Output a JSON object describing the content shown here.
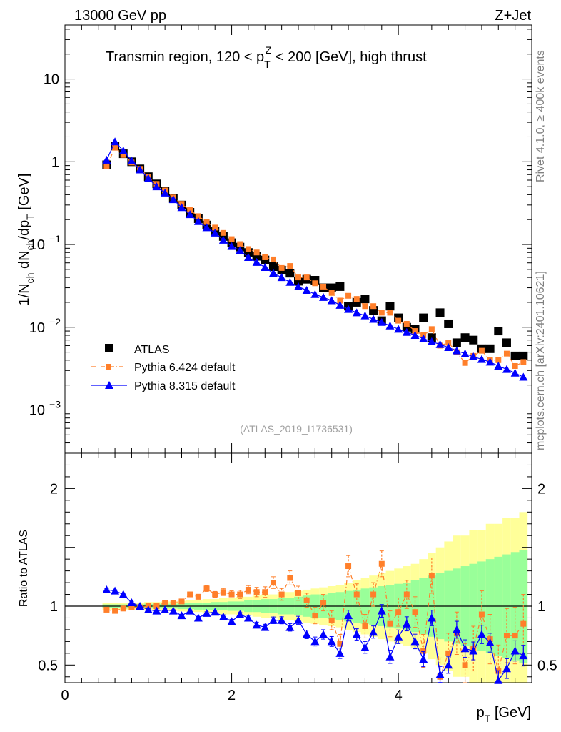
{
  "header": {
    "left": "13000 GeV pp",
    "right": "Z+Jet"
  },
  "side": {
    "rivet": "Rivet 4.1.0, ≥ 400k events",
    "mcplots": "mcplots.cern.ch [arXiv:2401.10621]"
  },
  "chart_data": [
    {
      "type": "scatter",
      "panel": "main",
      "title": {
        "pre": "Transmin region, 120 < p",
        "sub": "T",
        "sup": "Z",
        "post": " < 200 [GeV], high thrust"
      },
      "ylabel": {
        "a": "1/N",
        "a_sub": "ch",
        "b": " dN",
        "b_sub": "ch",
        "c": "/dp",
        "c_sub": "T",
        "d": " [GeV]"
      },
      "yscale": "log",
      "ylim": [
        0.0003,
        45
      ],
      "xlim": [
        0,
        5.6
      ],
      "yticks": [
        {
          "value": 0.001,
          "base": "10",
          "exp": "−3"
        },
        {
          "value": 0.01,
          "base": "10",
          "exp": "−2"
        },
        {
          "value": 0.1,
          "base": "10",
          "exp": "−1"
        },
        {
          "value": 1,
          "label": "1"
        },
        {
          "value": 10,
          "label": "10"
        }
      ],
      "analysis_tag": "(ATLAS_2019_I1736531)",
      "legend": {
        "position": "lower-left",
        "entries": [
          "ATLAS",
          "Pythia 6.424 default",
          "Pythia 8.315 default"
        ]
      },
      "x": [
        0.5,
        0.6,
        0.7,
        0.8,
        0.9,
        1.0,
        1.1,
        1.2,
        1.3,
        1.4,
        1.5,
        1.6,
        1.7,
        1.8,
        1.9,
        2.0,
        2.1,
        2.2,
        2.3,
        2.4,
        2.5,
        2.6,
        2.7,
        2.8,
        2.9,
        3.0,
        3.1,
        3.2,
        3.3,
        3.4,
        3.5,
        3.6,
        3.7,
        3.8,
        3.9,
        4.0,
        4.1,
        4.2,
        4.3,
        4.4,
        4.5,
        4.6,
        4.7,
        4.8,
        4.9,
        5.0,
        5.1,
        5.2,
        5.3,
        5.4,
        5.5
      ],
      "series": [
        {
          "name": "ATLAS",
          "color": "#000000",
          "marker": "square",
          "values": [
            0.92,
            1.55,
            1.25,
            1.0,
            0.82,
            0.66,
            0.54,
            0.44,
            0.36,
            0.3,
            0.245,
            0.205,
            0.172,
            0.145,
            0.125,
            0.105,
            0.093,
            0.08,
            0.072,
            0.065,
            0.054,
            0.049,
            0.045,
            0.036,
            0.038,
            0.037,
            0.03,
            0.03,
            0.031,
            0.018,
            0.02,
            0.022,
            0.016,
            0.012,
            0.018,
            0.013,
            0.01,
            0.0095,
            0.013,
            0.0075,
            0.015,
            0.011,
            0.0065,
            0.0075,
            0.007,
            0.0055,
            0.0055,
            0.009,
            0.0065,
            0.0045,
            0.0045
          ]
        },
        {
          "name": "Pythia 6.424 default",
          "color": "#ff7f2a",
          "marker": "small-square",
          "line": "dash-dot",
          "values": [
            0.88,
            1.48,
            1.21,
            0.98,
            0.82,
            0.66,
            0.54,
            0.45,
            0.37,
            0.31,
            0.26,
            0.22,
            0.187,
            0.16,
            0.138,
            0.116,
            0.101,
            0.088,
            0.08,
            0.07,
            0.066,
            0.052,
            0.055,
            0.04,
            0.04,
            0.034,
            0.031,
            0.026,
            0.021,
            0.024,
            0.022,
            0.018,
            0.018,
            0.015,
            0.015,
            0.012,
            0.011,
            0.009,
            0.008,
            0.0095,
            0.006,
            0.0065,
            0.005,
            0.0037,
            0.0045,
            0.0052,
            0.004,
            0.004,
            0.0048,
            0.0034,
            0.0038
          ]
        },
        {
          "name": "Pythia 8.315 default",
          "color": "#0000ff",
          "marker": "triangle",
          "line": "solid",
          "values": [
            1.05,
            1.75,
            1.36,
            1.03,
            0.8,
            0.63,
            0.5,
            0.42,
            0.35,
            0.28,
            0.23,
            0.19,
            0.16,
            0.138,
            0.113,
            0.095,
            0.085,
            0.07,
            0.061,
            0.053,
            0.045,
            0.04,
            0.035,
            0.031,
            0.028,
            0.025,
            0.023,
            0.021,
            0.0185,
            0.0165,
            0.015,
            0.0138,
            0.0125,
            0.0115,
            0.0104,
            0.0095,
            0.0087,
            0.008,
            0.0073,
            0.0067,
            0.0062,
            0.0057,
            0.0052,
            0.0048,
            0.0044,
            0.0041,
            0.0038,
            0.0034,
            0.0031,
            0.0028,
            0.0025
          ]
        }
      ]
    },
    {
      "type": "scatter",
      "panel": "ratio",
      "ylabel": "Ratio to ATLAS",
      "xlabel": {
        "main": "p",
        "sub": "T",
        "unit": " [GeV]"
      },
      "ylim": [
        0.35,
        2.3
      ],
      "xlim": [
        0,
        5.6
      ],
      "xticks": [
        {
          "value": 0,
          "label": "0"
        },
        {
          "value": 2,
          "label": "2"
        },
        {
          "value": 4,
          "label": "4"
        }
      ],
      "yticks": [
        {
          "value": 0.5,
          "label": "0.5"
        },
        {
          "value": 1,
          "label": "1"
        },
        {
          "value": 2,
          "label": "2"
        }
      ],
      "reference_line": 1,
      "bands": [
        {
          "name": "ATLAS total uncertainty",
          "color": "#ffff99",
          "half_widths": [
            0.03,
            0.03,
            0.03,
            0.03,
            0.03,
            0.035,
            0.035,
            0.04,
            0.04,
            0.045,
            0.05,
            0.05,
            0.06,
            0.06,
            0.07,
            0.07,
            0.08,
            0.08,
            0.09,
            0.1,
            0.1,
            0.12,
            0.12,
            0.13,
            0.14,
            0.15,
            0.16,
            0.17,
            0.18,
            0.2,
            0.22,
            0.24,
            0.26,
            0.28,
            0.3,
            0.32,
            0.34,
            0.36,
            0.4,
            0.45,
            0.5,
            0.55,
            0.6,
            0.6,
            0.65,
            0.65,
            0.7,
            0.7,
            0.75,
            0.75,
            0.8
          ]
        },
        {
          "name": "ATLAS statistical uncertainty",
          "color": "#99ff99",
          "half_widths": [
            0.015,
            0.015,
            0.015,
            0.015,
            0.015,
            0.02,
            0.02,
            0.02,
            0.02,
            0.025,
            0.025,
            0.03,
            0.03,
            0.035,
            0.035,
            0.04,
            0.04,
            0.05,
            0.05,
            0.06,
            0.06,
            0.07,
            0.07,
            0.08,
            0.09,
            0.1,
            0.1,
            0.11,
            0.12,
            0.13,
            0.14,
            0.15,
            0.16,
            0.17,
            0.18,
            0.19,
            0.2,
            0.22,
            0.24,
            0.26,
            0.28,
            0.3,
            0.32,
            0.34,
            0.36,
            0.38,
            0.4,
            0.42,
            0.44,
            0.46,
            0.48
          ]
        }
      ],
      "x": [
        0.5,
        0.6,
        0.7,
        0.8,
        0.9,
        1.0,
        1.1,
        1.2,
        1.3,
        1.4,
        1.5,
        1.6,
        1.7,
        1.8,
        1.9,
        2.0,
        2.1,
        2.2,
        2.3,
        2.4,
        2.5,
        2.6,
        2.7,
        2.8,
        2.9,
        3.0,
        3.1,
        3.2,
        3.3,
        3.4,
        3.5,
        3.6,
        3.7,
        3.8,
        3.9,
        4.0,
        4.1,
        4.2,
        4.3,
        4.4,
        4.5,
        4.6,
        4.7,
        4.8,
        4.9,
        5.0,
        5.1,
        5.2,
        5.3,
        5.4,
        5.5
      ],
      "series": [
        {
          "name": "Pythia 6.424 default",
          "color": "#ff7f2a",
          "values": [
            0.97,
            0.96,
            0.98,
            0.99,
            0.99,
            1.0,
            1.0,
            1.03,
            1.03,
            1.04,
            1.1,
            1.08,
            1.15,
            1.1,
            1.12,
            1.1,
            1.1,
            1.14,
            1.12,
            1.12,
            1.2,
            1.1,
            1.24,
            1.11,
            1.05,
            0.92,
            1.03,
            0.88,
            0.68,
            1.34,
            1.1,
            0.83,
            1.1,
            1.36,
            0.85,
            0.95,
            1.1,
            0.95,
            0.62,
            1.26,
            0.4,
            0.6,
            0.77,
            0.5,
            0.64,
            0.93,
            0.72,
            0.45,
            0.75,
            0.75,
            0.85
          ],
          "errors": [
            0.01,
            0.01,
            0.01,
            0.01,
            0.01,
            0.01,
            0.01,
            0.015,
            0.015,
            0.015,
            0.02,
            0.02,
            0.025,
            0.025,
            0.03,
            0.03,
            0.035,
            0.035,
            0.04,
            0.045,
            0.05,
            0.05,
            0.06,
            0.06,
            0.06,
            0.07,
            0.07,
            0.08,
            0.08,
            0.09,
            0.09,
            0.1,
            0.1,
            0.11,
            0.11,
            0.12,
            0.12,
            0.13,
            0.14,
            0.15,
            0.16,
            0.17,
            0.18,
            0.18,
            0.19,
            0.2,
            0.21,
            0.22,
            0.23,
            0.24,
            0.25
          ]
        },
        {
          "name": "Pythia 8.315 default",
          "color": "#0000ff",
          "values": [
            1.14,
            1.13,
            1.1,
            1.03,
            1.0,
            0.97,
            0.96,
            0.97,
            0.96,
            0.92,
            0.96,
            0.9,
            0.94,
            0.95,
            0.91,
            0.87,
            0.93,
            0.9,
            0.84,
            0.82,
            0.88,
            0.88,
            0.82,
            0.88,
            0.76,
            0.7,
            0.76,
            0.7,
            0.6,
            0.92,
            0.76,
            0.65,
            0.78,
            0.96,
            0.57,
            0.74,
            0.85,
            0.7,
            0.55,
            0.9,
            0.42,
            0.5,
            0.8,
            0.64,
            0.62,
            0.76,
            0.69,
            0.37,
            0.47,
            0.62,
            0.58
          ],
          "errors": [
            0.01,
            0.01,
            0.01,
            0.01,
            0.01,
            0.01,
            0.01,
            0.01,
            0.01,
            0.01,
            0.01,
            0.012,
            0.012,
            0.014,
            0.016,
            0.018,
            0.02,
            0.022,
            0.024,
            0.026,
            0.028,
            0.03,
            0.032,
            0.034,
            0.036,
            0.038,
            0.04,
            0.042,
            0.044,
            0.046,
            0.048,
            0.05,
            0.052,
            0.054,
            0.056,
            0.058,
            0.06,
            0.062,
            0.064,
            0.066,
            0.068,
            0.07,
            0.072,
            0.074,
            0.076,
            0.078,
            0.08,
            0.082,
            0.084,
            0.086,
            0.088
          ]
        }
      ]
    }
  ]
}
